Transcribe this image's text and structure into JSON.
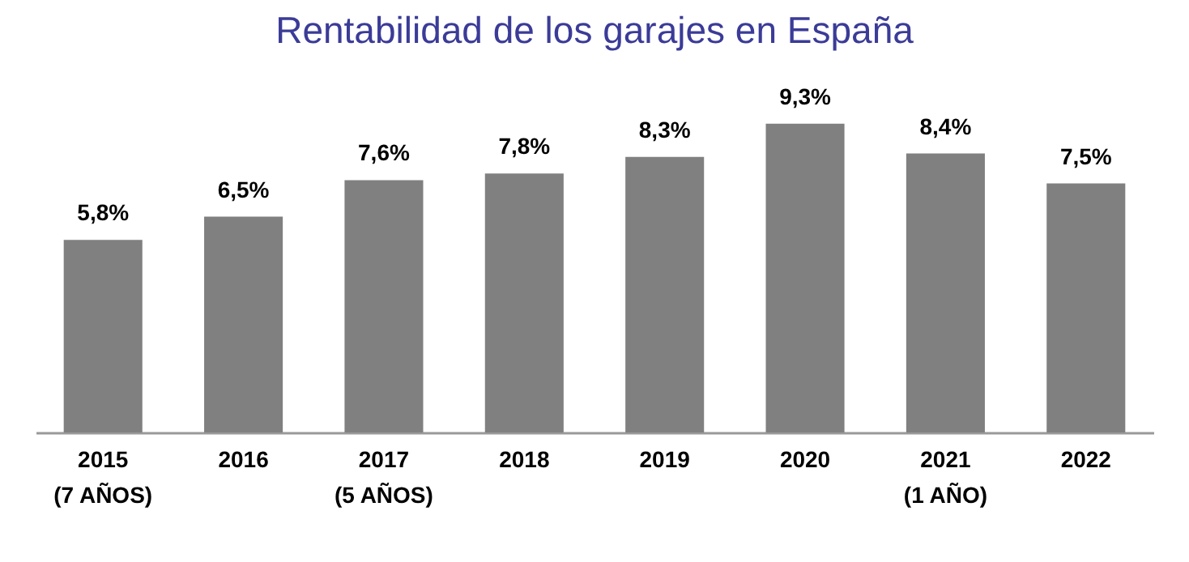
{
  "chart_data": {
    "type": "bar",
    "title": "Rentabilidad de los garajes en España",
    "categories": [
      "2015\n(7 AÑOS)",
      "2016",
      "2017\n(5 AÑOS)",
      "2018",
      "2019",
      "2020",
      "2021\n(1 AÑO)",
      "2022"
    ],
    "values": [
      5.8,
      6.5,
      7.6,
      7.8,
      8.3,
      9.3,
      8.4,
      7.5
    ],
    "value_labels": [
      "5,8%",
      "6,5%",
      "7,6%",
      "7,8%",
      "8,3%",
      "9,3%",
      "8,4%",
      "7,5%"
    ],
    "color": "#808080"
  }
}
